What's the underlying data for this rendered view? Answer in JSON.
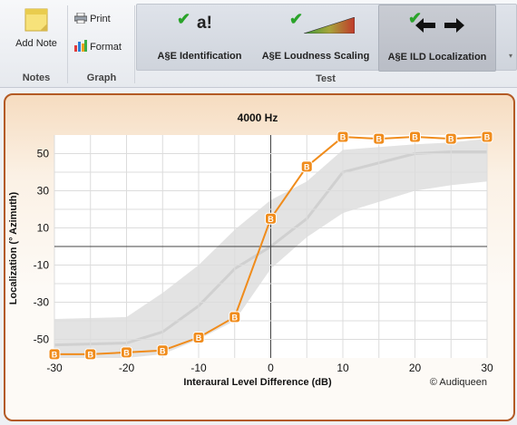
{
  "ribbon": {
    "notes": {
      "add_note_label": "Add Note",
      "group_label": "Notes"
    },
    "graph": {
      "print_label": "Print",
      "format_label": "Format",
      "group_label": "Graph"
    },
    "test": {
      "group_label": "Test",
      "buttons": [
        {
          "label": "A§E Identification",
          "icon": "a!"
        },
        {
          "label": "A§E Loudness Scaling",
          "icon": "loudness-ramp-icon"
        },
        {
          "label": "A§E ILD Localization",
          "icon": "left-right-arrows-icon",
          "active": true
        }
      ]
    }
  },
  "chart_data": {
    "type": "line",
    "title": "4000 Hz",
    "xlabel": "Interaural Level Difference (dB)",
    "ylabel": "Localization (° Azimuth)",
    "xlim": [
      -30,
      30
    ],
    "ylim": [
      -60,
      60
    ],
    "xticks": [
      "-30",
      "-20",
      "-10",
      "0",
      "10",
      "20",
      "30"
    ],
    "yticks": [
      "50",
      "30",
      "10",
      "-10",
      "-30",
      "-50"
    ],
    "grid": true,
    "marker_label": "B",
    "series": [
      {
        "x": [
          -30,
          -25,
          -20,
          -15,
          -10,
          -5,
          0,
          5,
          10,
          15,
          20,
          25,
          30
        ],
        "values": [
          -58,
          -58,
          -57,
          -56,
          -49,
          -38,
          15,
          43,
          59,
          58,
          59,
          58,
          59
        ]
      }
    ],
    "normative_band": {
      "x": [
        -30,
        -20,
        -15,
        -10,
        -5,
        0,
        5,
        10,
        20,
        25,
        30
      ],
      "upper": [
        -39,
        -38,
        -25,
        -10,
        9,
        25,
        35,
        52,
        55,
        56,
        58
      ],
      "median": [
        -53,
        -52,
        -46,
        -32,
        -12,
        0,
        15,
        40,
        50,
        51,
        51
      ],
      "lower": [
        -60,
        -60,
        -58,
        -50,
        -40,
        -12,
        5,
        18,
        30,
        33,
        35
      ]
    },
    "copyright": "© Audiqueen",
    "colors": {
      "series": "#f08c1c",
      "band": "#e3e3e3",
      "band_median": "#d0d0d0"
    }
  }
}
